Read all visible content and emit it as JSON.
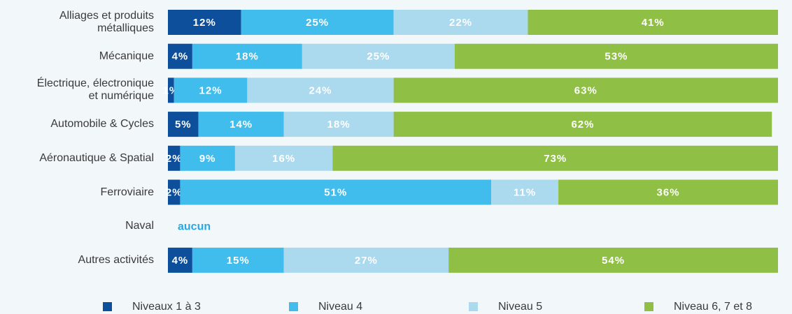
{
  "chart_data": {
    "type": "stacked-bar-horizontal",
    "categories": [
      "Alliages et produits\nmétalliques",
      "Mécanique",
      "Électrique, électronique\net numérique",
      "Automobile & Cycles",
      "Aéronautique & Spatial",
      "Ferroviaire",
      "Naval",
      "Autres activités"
    ],
    "xlim": [
      0,
      100
    ],
    "series": [
      {
        "name": "Niveaux 1 à 3",
        "color": "#0e4f9b",
        "values": [
          12,
          4,
          1,
          5,
          2,
          2,
          null,
          4
        ],
        "value_labels": [
          "12%",
          "4%",
          "1%",
          "5%",
          "2%",
          "2%",
          null,
          "4%"
        ]
      },
      {
        "name": "Niveau 4",
        "color": "#40bdec",
        "values": [
          25,
          18,
          12,
          14,
          9,
          51,
          null,
          15
        ],
        "value_labels": [
          "25%",
          "18%",
          "12%",
          "14%",
          "9%",
          "51%",
          null,
          "15%"
        ]
      },
      {
        "name": "Niveau 5",
        "color": "#abd9ee",
        "values": [
          22,
          25,
          24,
          18,
          16,
          11,
          null,
          27
        ],
        "value_labels": [
          "22%",
          "25%",
          "24%",
          "18%",
          "16%",
          "11%",
          null,
          "27%"
        ]
      },
      {
        "name": "Niveau 6, 7 et 8",
        "color": "#8fc045",
        "values": [
          41,
          53,
          63,
          62,
          73,
          36,
          null,
          54
        ],
        "value_labels": [
          "41%",
          "53%",
          "63%",
          "62%",
          "73%",
          "36%",
          null,
          "54%"
        ]
      }
    ],
    "annotations": [
      {
        "category": "Naval",
        "text": "aucun"
      }
    ]
  }
}
